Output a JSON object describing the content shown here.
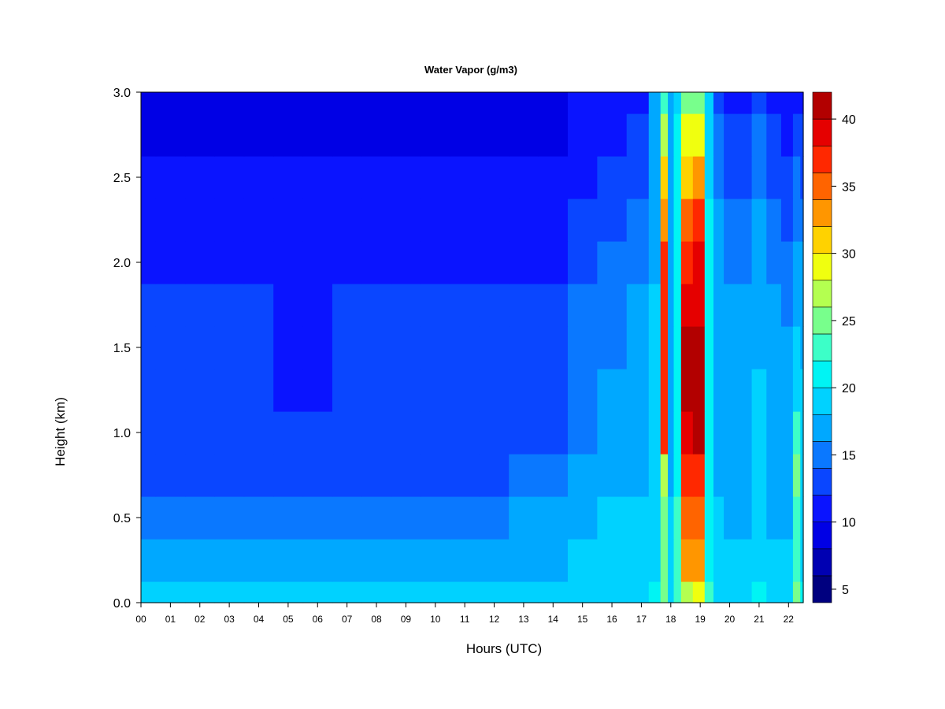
{
  "chart_data": {
    "type": "heatmap",
    "title": "Water Vapor (g/m3)",
    "xlabel": "Hours (UTC)",
    "ylabel": "Height (km)",
    "xlim": [
      0,
      22.5
    ],
    "ylim": [
      0.0,
      3.0
    ],
    "x_ticks": [
      "00",
      "01",
      "02",
      "03",
      "04",
      "05",
      "06",
      "07",
      "08",
      "09",
      "10",
      "11",
      "12",
      "13",
      "14",
      "15",
      "16",
      "17",
      "18",
      "19",
      "20",
      "21",
      "22"
    ],
    "y_ticks": [
      "0.0",
      "0.5",
      "1.0",
      "1.5",
      "2.0",
      "2.5",
      "3.0"
    ],
    "colorbar": {
      "levels": [
        4,
        6,
        8,
        10,
        12,
        14,
        16,
        18,
        20,
        22,
        24,
        26,
        28,
        30,
        32,
        34,
        36,
        38,
        40,
        42
      ],
      "colors": [
        "#00007f",
        "#0000b2",
        "#0000e5",
        "#0a14ff",
        "#0a46ff",
        "#0a78ff",
        "#00a8ff",
        "#00d2ff",
        "#00f4f4",
        "#3cffc8",
        "#78ff8c",
        "#b4ff50",
        "#f0ff0f",
        "#ffd200",
        "#ff9600",
        "#ff6400",
        "#ff2800",
        "#e50000",
        "#b20000",
        "#7f0000"
      ],
      "ticks": [
        5,
        10,
        15,
        20,
        25,
        30,
        35,
        40
      ]
    },
    "x_hours": [
      0,
      1,
      2,
      3,
      4,
      5,
      6,
      7,
      8,
      9,
      10,
      11,
      12,
      13,
      14,
      15,
      16,
      17,
      17.5,
      17.8,
      18,
      18.2,
      18.5,
      19,
      19.3,
      19.6,
      20,
      20.5,
      21,
      21.5,
      22,
      22.3,
      22.5
    ],
    "heights_km": [
      0.0,
      0.25,
      0.5,
      0.75,
      1.0,
      1.25,
      1.5,
      1.75,
      2.0,
      2.25,
      2.5,
      2.75,
      3.0
    ],
    "values": [
      [
        18,
        18,
        18,
        18,
        18,
        18,
        18,
        18,
        18,
        18,
        18,
        18,
        18,
        18,
        18,
        19,
        19,
        19,
        20,
        24,
        19,
        22,
        26,
        28,
        22,
        19,
        19,
        19,
        20,
        19,
        19,
        24,
        20
      ],
      [
        17,
        17,
        17,
        17,
        17,
        16,
        16,
        17,
        17,
        17,
        17,
        17,
        17,
        17,
        17,
        18,
        18,
        19,
        19,
        24,
        19,
        22,
        32,
        32,
        21,
        19,
        18,
        18,
        19,
        18,
        18,
        22,
        19
      ],
      [
        15,
        15,
        15,
        15,
        15,
        14,
        14,
        14,
        14,
        15,
        15,
        15,
        15,
        16,
        16,
        17,
        18,
        18,
        18,
        24,
        18,
        22,
        34,
        34,
        21,
        18,
        17,
        17,
        18,
        17,
        17,
        22,
        19
      ],
      [
        13,
        13,
        13,
        13,
        13,
        12,
        12,
        13,
        13,
        13,
        13,
        13,
        13,
        14,
        14,
        16,
        17,
        17,
        18,
        26,
        17,
        21,
        36,
        37,
        21,
        17,
        17,
        17,
        18,
        17,
        17,
        24,
        19
      ],
      [
        13,
        13,
        13,
        13,
        13,
        12,
        12,
        13,
        13,
        13,
        13,
        13,
        13,
        13,
        13,
        15,
        16,
        17,
        18,
        37,
        17,
        21,
        39,
        40,
        21,
        17,
        17,
        17,
        18,
        17,
        17,
        22,
        18
      ],
      [
        13,
        13,
        13,
        13,
        12,
        11,
        11,
        12,
        13,
        13,
        13,
        13,
        13,
        13,
        13,
        15,
        16,
        17,
        18,
        37,
        17,
        20,
        40,
        41,
        20,
        17,
        17,
        17,
        18,
        17,
        17,
        19,
        18
      ],
      [
        13,
        13,
        13,
        13,
        12,
        11,
        11,
        12,
        13,
        13,
        13,
        13,
        13,
        13,
        13,
        14,
        15,
        16,
        18,
        37,
        17,
        20,
        40,
        40,
        20,
        17,
        16,
        16,
        17,
        16,
        16,
        18,
        17
      ],
      [
        12,
        12,
        12,
        12,
        12,
        11,
        11,
        12,
        12,
        12,
        12,
        12,
        12,
        12,
        12,
        14,
        15,
        16,
        18,
        37,
        17,
        20,
        38,
        39,
        20,
        17,
        16,
        16,
        17,
        16,
        15,
        17,
        17
      ],
      [
        11,
        11,
        11,
        11,
        11,
        11,
        11,
        11,
        11,
        11,
        11,
        11,
        11,
        11,
        10,
        12,
        14,
        15,
        17,
        36,
        16,
        20,
        37,
        38,
        20,
        16,
        15,
        15,
        16,
        15,
        14,
        16,
        16
      ],
      [
        11,
        11,
        11,
        11,
        11,
        11,
        11,
        11,
        11,
        11,
        11,
        11,
        11,
        11,
        10,
        12,
        13,
        14,
        17,
        33,
        16,
        20,
        34,
        36,
        20,
        16,
        14,
        14,
        16,
        14,
        13,
        15,
        15
      ],
      [
        10,
        10,
        10,
        10,
        10,
        10,
        10,
        10,
        10,
        10,
        10,
        10,
        10,
        10,
        10,
        11,
        12,
        13,
        17,
        30,
        16,
        20,
        30,
        32,
        19,
        15,
        13,
        13,
        15,
        13,
        12,
        14,
        13
      ],
      [
        9,
        9,
        9,
        9,
        9,
        8,
        8,
        9,
        9,
        9,
        9,
        9,
        9,
        9,
        9,
        10,
        11,
        12,
        17,
        26,
        16,
        20,
        28,
        29,
        18,
        14,
        12,
        12,
        14,
        12,
        11,
        12,
        12
      ],
      [
        8,
        8,
        8,
        8,
        8,
        8,
        8,
        8,
        8,
        8,
        8,
        8,
        8,
        8,
        8,
        10,
        10,
        11,
        17,
        22,
        16,
        19,
        24,
        25,
        18,
        13,
        11,
        11,
        13,
        11,
        10,
        11,
        11
      ]
    ]
  }
}
